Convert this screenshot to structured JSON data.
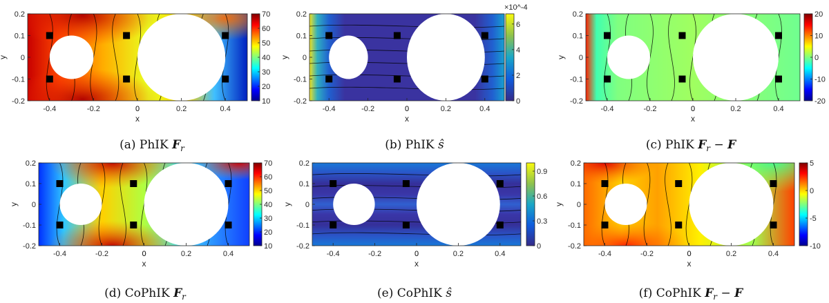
{
  "panels": [
    {
      "caption": "(a) PhIK F_r",
      "caption_parts": [
        "(a) PhIK ",
        "F",
        "r",
        ""
      ],
      "quantity": "F_r",
      "colormap": "jet",
      "colorbar": {
        "ticks": [
          "10",
          "20",
          "30",
          "40",
          "50",
          "60",
          "70"
        ],
        "min": 10,
        "max": 70,
        "exponent": ""
      },
      "yticks": [
        "-0.2",
        "-0.1",
        "0",
        "0.1",
        "0.2"
      ],
      "xticks": [
        "-0.4",
        "-0.2",
        "0",
        "0.2",
        "0.4"
      ]
    },
    {
      "caption": "(b) PhIK ŝ",
      "caption_parts": [
        "(b) PhIK ",
        "ŝ"
      ],
      "quantity": "s_hat",
      "colormap": "parula",
      "colorbar": {
        "ticks": [
          "0",
          "2",
          "4",
          "6"
        ],
        "min": 0,
        "max": 6.8,
        "exponent": "×10^-4"
      },
      "yticks": [
        "-0.2",
        "-0.1",
        "0",
        "0.1",
        "0.2"
      ],
      "xticks": [
        "-0.4",
        "-0.2",
        "0",
        "0.2",
        "0.4"
      ]
    },
    {
      "caption": "(c) PhIK F_r − F",
      "caption_parts": [
        "(c) PhIK ",
        "F",
        "r",
        " − ",
        "F"
      ],
      "quantity": "F_r - F",
      "colormap": "jet",
      "colorbar": {
        "ticks": [
          "-20",
          "-10",
          "0",
          "10",
          "20"
        ],
        "min": -20,
        "max": 20,
        "exponent": ""
      },
      "yticks": [
        "-0.2",
        "-0.1",
        "0",
        "0.1",
        "0.2"
      ],
      "xticks": [
        "-0.4",
        "-0.2",
        "0",
        "0.2",
        "0.4"
      ]
    },
    {
      "caption": "(d) CoPhIK F_r",
      "caption_parts": [
        "(d) CoPhIK ",
        "F",
        "r",
        ""
      ],
      "quantity": "F_r",
      "colormap": "jet",
      "colorbar": {
        "ticks": [
          "10",
          "20",
          "30",
          "40",
          "50",
          "60",
          "70"
        ],
        "min": 10,
        "max": 70,
        "exponent": ""
      },
      "yticks": [
        "-0.2",
        "-0.1",
        "0",
        "0.1",
        "0.2"
      ],
      "xticks": [
        "-0.4",
        "-0.2",
        "0",
        "0.2",
        "0.4"
      ]
    },
    {
      "caption": "(e) CoPhIK ŝ",
      "caption_parts": [
        "(e) CoPhIK ",
        "ŝ"
      ],
      "quantity": "s_hat",
      "colormap": "parula",
      "colorbar": {
        "ticks": [
          "0",
          "0.3",
          "0.6",
          "0.9"
        ],
        "min": 0,
        "max": 1.0,
        "exponent": ""
      },
      "yticks": [
        "-0.2",
        "-0.1",
        "0",
        "0.1",
        "0.2"
      ],
      "xticks": [
        "-0.4",
        "-0.2",
        "0",
        "0.2",
        "0.4"
      ]
    },
    {
      "caption": "(f) CoPhIK F_r − F",
      "caption_parts": [
        "(f) CoPhIK ",
        "F",
        "r",
        " − ",
        "F"
      ],
      "quantity": "F_r - F",
      "colormap": "jet",
      "colorbar": {
        "ticks": [
          "-10",
          "-5",
          "0",
          "5"
        ],
        "min": -10,
        "max": 5,
        "exponent": ""
      },
      "yticks": [
        "-0.2",
        "-0.1",
        "0",
        "0.1",
        "0.2"
      ],
      "xticks": [
        "-0.4",
        "-0.2",
        "0",
        "0.2",
        "0.4"
      ]
    }
  ],
  "axis_labels": {
    "x": "x",
    "y": "y"
  },
  "chart_data": {
    "type": "heatmap",
    "xlim": [
      -0.5,
      0.5
    ],
    "ylim": [
      -0.2,
      0.2
    ],
    "obstacles": [
      {
        "cx": -0.3,
        "cy": 0.0,
        "r": 0.1
      },
      {
        "cx": 0.2,
        "cy": 0.0,
        "r": 0.2
      }
    ],
    "observation_points": [
      {
        "x": -0.4,
        "y": 0.1
      },
      {
        "x": -0.05,
        "y": 0.1
      },
      {
        "x": 0.4,
        "y": 0.1
      },
      {
        "x": -0.4,
        "y": -0.1
      },
      {
        "x": -0.05,
        "y": -0.1
      },
      {
        "x": 0.4,
        "y": -0.1
      }
    ],
    "colorbar_ranges": [
      [
        10,
        70
      ],
      [
        0,
        0.00068
      ],
      [
        -20,
        20
      ],
      [
        10,
        70
      ],
      [
        0,
        1.0
      ],
      [
        -10,
        5
      ]
    ],
    "grid": false
  }
}
